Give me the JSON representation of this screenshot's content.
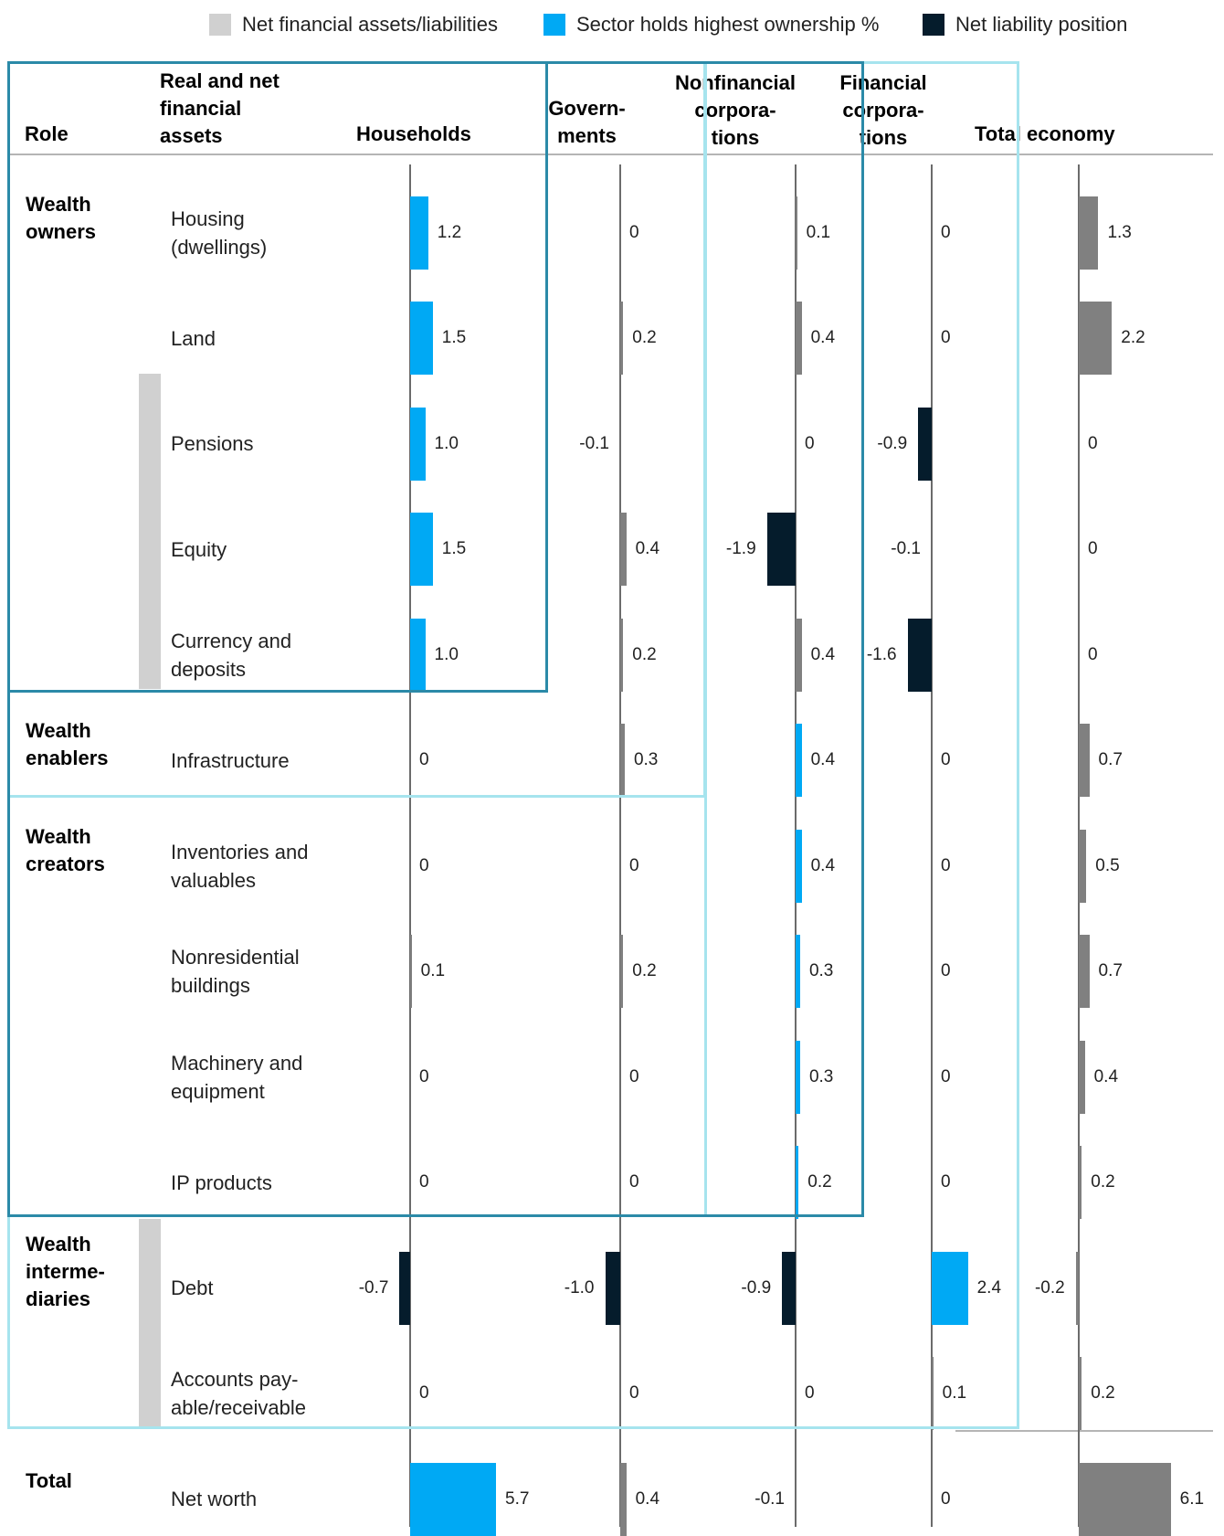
{
  "legend": [
    {
      "label": "Net financial assets/liabilities",
      "color": "#d0d0d0"
    },
    {
      "label": "Sector holds highest ownership %",
      "color": "#00a9f4"
    },
    {
      "label": "Net liability position",
      "color": "#051c2c"
    }
  ],
  "headers": {
    "role": "Role",
    "assets": [
      "Real and net",
      "financial",
      "assets"
    ],
    "households": "Households",
    "governments": [
      "Govern-",
      "ments"
    ],
    "nonfinancial": [
      "Nonfinancial",
      "corpora-",
      "tions"
    ],
    "financial": [
      "Financial",
      "corpora-",
      "tions"
    ],
    "total": "Total economy"
  },
  "roles": [
    {
      "lines": [
        "Wealth",
        "owners"
      ]
    },
    {
      "lines": [
        "Wealth",
        "enablers"
      ]
    },
    {
      "lines": [
        "Wealth",
        "creators"
      ]
    },
    {
      "lines": [
        "Wealth",
        "interme-",
        "diaries"
      ]
    },
    {
      "lines": [
        "Total"
      ]
    }
  ],
  "colors": {
    "highlight": "#00a9f4",
    "liability": "#051c2c",
    "neutral": "#808080",
    "net_financial": "#d0d0d0",
    "box_dark": "#2b8aa8",
    "box_light": "#a6e4ee"
  },
  "chart_data": {
    "type": "bar",
    "categories": [
      [
        "Housing",
        "(dwellings)"
      ],
      [
        "Land"
      ],
      [
        "Pensions"
      ],
      [
        "Equity"
      ],
      [
        "Currency and",
        "deposits"
      ],
      [
        "Infrastructure"
      ],
      [
        "Inventories and",
        "valuables"
      ],
      [
        "Nonresidential",
        "buildings"
      ],
      [
        "Machinery and",
        "equipment"
      ],
      [
        "IP products"
      ],
      [
        "Debt"
      ],
      [
        "Accounts pay-",
        "able/receivable"
      ],
      [
        "Net worth"
      ]
    ],
    "series": [
      {
        "name": "Households",
        "values": [
          1.2,
          1.5,
          1.0,
          1.5,
          1.0,
          0,
          0,
          0.1,
          0,
          0,
          -0.7,
          0,
          5.7
        ],
        "labels": [
          "1.2",
          "1.5",
          "1.0",
          "1.5",
          "1.0",
          "0",
          "0",
          "0.1",
          "0",
          "0",
          "-0.7",
          "0",
          "5.7"
        ],
        "bar_colors": [
          "highlight",
          "highlight",
          "highlight",
          "highlight",
          "highlight",
          "neutral",
          "neutral",
          "neutral",
          "neutral",
          "neutral",
          "liability",
          "neutral",
          "highlight"
        ]
      },
      {
        "name": "Governments",
        "values": [
          0,
          0.2,
          -0.1,
          0.4,
          0.2,
          0.3,
          0,
          0.2,
          0,
          0,
          -1.0,
          0,
          0.4
        ],
        "labels": [
          "0",
          "0.2",
          "-0.1",
          "0.4",
          "0.2",
          "0.3",
          "0",
          "0.2",
          "0",
          "0",
          "-1.0",
          "0",
          "0.4"
        ],
        "bar_colors": [
          "neutral",
          "neutral",
          "none",
          "neutral",
          "neutral",
          "neutral",
          "neutral",
          "neutral",
          "neutral",
          "neutral",
          "liability",
          "neutral",
          "neutral"
        ]
      },
      {
        "name": "Nonfinancial corporations",
        "values": [
          0.1,
          0.4,
          0,
          -1.9,
          0.4,
          0.4,
          0.4,
          0.3,
          0.3,
          0.2,
          -0.9,
          0,
          -0.1
        ],
        "labels": [
          "0.1",
          "0.4",
          "0",
          "-1.9",
          "0.4",
          "0.4",
          "0.4",
          "0.3",
          "0.3",
          "0.2",
          "-0.9",
          "0",
          "-0.1"
        ],
        "bar_colors": [
          "neutral",
          "neutral",
          "neutral",
          "liability",
          "neutral",
          "highlight",
          "highlight",
          "highlight",
          "highlight",
          "highlight",
          "liability",
          "neutral",
          "none"
        ]
      },
      {
        "name": "Financial corporations",
        "values": [
          0,
          0,
          -0.9,
          -0.1,
          -1.6,
          0,
          0,
          0,
          0,
          0,
          2.4,
          0.1,
          0
        ],
        "labels": [
          "0",
          "0",
          "-0.9",
          "-0.1",
          "-1.6",
          "0",
          "0",
          "0",
          "0",
          "0",
          "2.4",
          "0.1",
          "0"
        ],
        "bar_colors": [
          "neutral",
          "neutral",
          "liability",
          "none",
          "liability",
          "neutral",
          "neutral",
          "neutral",
          "neutral",
          "neutral",
          "highlight",
          "neutral",
          "none"
        ]
      },
      {
        "name": "Total economy",
        "values": [
          1.3,
          2.2,
          0,
          0,
          0,
          0.7,
          0.5,
          0.7,
          0.4,
          0.2,
          -0.2,
          0.2,
          6.1
        ],
        "labels": [
          "1.3",
          "2.2",
          "0",
          "0",
          "0",
          "0.7",
          "0.5",
          "0.7",
          "0.4",
          "0.2",
          "-0.2",
          "0.2",
          "6.1"
        ],
        "bar_colors": [
          "neutral",
          "neutral",
          "none",
          "none",
          "none",
          "neutral",
          "neutral",
          "neutral",
          "neutral",
          "neutral",
          "neutral",
          "neutral",
          "neutral"
        ]
      }
    ]
  }
}
